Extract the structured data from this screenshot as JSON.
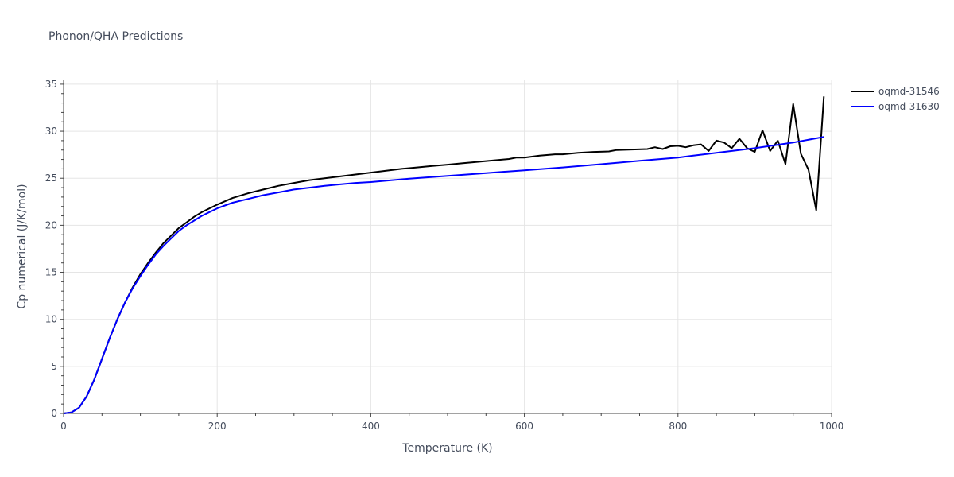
{
  "chart_data": {
    "type": "line",
    "title": "Phonon/QHA Predictions",
    "xlabel": "Temperature (K)",
    "ylabel": "Cp numerical (J/K/mol)",
    "xlim": [
      0,
      1000
    ],
    "ylim": [
      0,
      35.5
    ],
    "x_ticks": [
      "0",
      "200",
      "400",
      "600",
      "800",
      "1000"
    ],
    "y_ticks": [
      "0",
      "5",
      "10",
      "15",
      "20",
      "25",
      "30",
      "35"
    ],
    "grid": true,
    "legend_position": "top-right",
    "series": [
      {
        "name": "oqmd-31546",
        "color": "#000000",
        "x": [
          0,
          10,
          20,
          30,
          40,
          50,
          60,
          70,
          80,
          90,
          100,
          110,
          120,
          130,
          140,
          150,
          160,
          170,
          180,
          190,
          200,
          220,
          240,
          260,
          280,
          300,
          320,
          340,
          360,
          380,
          400,
          420,
          440,
          460,
          480,
          500,
          520,
          540,
          560,
          580,
          590,
          600,
          620,
          640,
          650,
          670,
          690,
          710,
          720,
          740,
          760,
          770,
          780,
          790,
          800,
          810,
          820,
          830,
          840,
          850,
          860,
          870,
          880,
          890,
          900,
          910,
          920,
          930,
          940,
          950,
          960,
          970,
          980,
          990
        ],
        "y": [
          0,
          0.1,
          0.6,
          1.8,
          3.6,
          5.8,
          8.0,
          10.0,
          11.8,
          13.4,
          14.8,
          16.0,
          17.1,
          18.1,
          18.9,
          19.7,
          20.3,
          20.9,
          21.4,
          21.8,
          22.2,
          22.9,
          23.4,
          23.8,
          24.2,
          24.5,
          24.8,
          25.0,
          25.2,
          25.4,
          25.6,
          25.8,
          26.0,
          26.15,
          26.3,
          26.45,
          26.6,
          26.75,
          26.9,
          27.05,
          27.2,
          27.2,
          27.4,
          27.55,
          27.55,
          27.7,
          27.8,
          27.85,
          28.0,
          28.05,
          28.1,
          28.3,
          28.1,
          28.4,
          28.45,
          28.3,
          28.5,
          28.6,
          27.9,
          29.0,
          28.8,
          28.2,
          29.2,
          28.2,
          27.8,
          30.1,
          27.9,
          29.0,
          26.5,
          32.9,
          27.6,
          25.9,
          21.6,
          33.7
        ]
      },
      {
        "name": "oqmd-31630",
        "color": "#0000ff",
        "x": [
          0,
          10,
          20,
          30,
          40,
          50,
          60,
          70,
          80,
          90,
          100,
          110,
          120,
          130,
          140,
          150,
          160,
          170,
          180,
          190,
          200,
          220,
          240,
          260,
          280,
          300,
          320,
          340,
          360,
          380,
          400,
          450,
          500,
          550,
          600,
          650,
          700,
          750,
          800,
          820,
          850,
          900,
          950,
          990
        ],
        "y": [
          0,
          0.1,
          0.6,
          1.8,
          3.6,
          5.8,
          8.0,
          10.0,
          11.8,
          13.3,
          14.6,
          15.8,
          16.9,
          17.8,
          18.6,
          19.4,
          20.0,
          20.5,
          21.0,
          21.4,
          21.8,
          22.4,
          22.8,
          23.2,
          23.5,
          23.8,
          24.0,
          24.2,
          24.35,
          24.5,
          24.6,
          24.95,
          25.25,
          25.55,
          25.85,
          26.15,
          26.5,
          26.85,
          27.2,
          27.4,
          27.7,
          28.2,
          28.8,
          29.4
        ]
      }
    ]
  }
}
